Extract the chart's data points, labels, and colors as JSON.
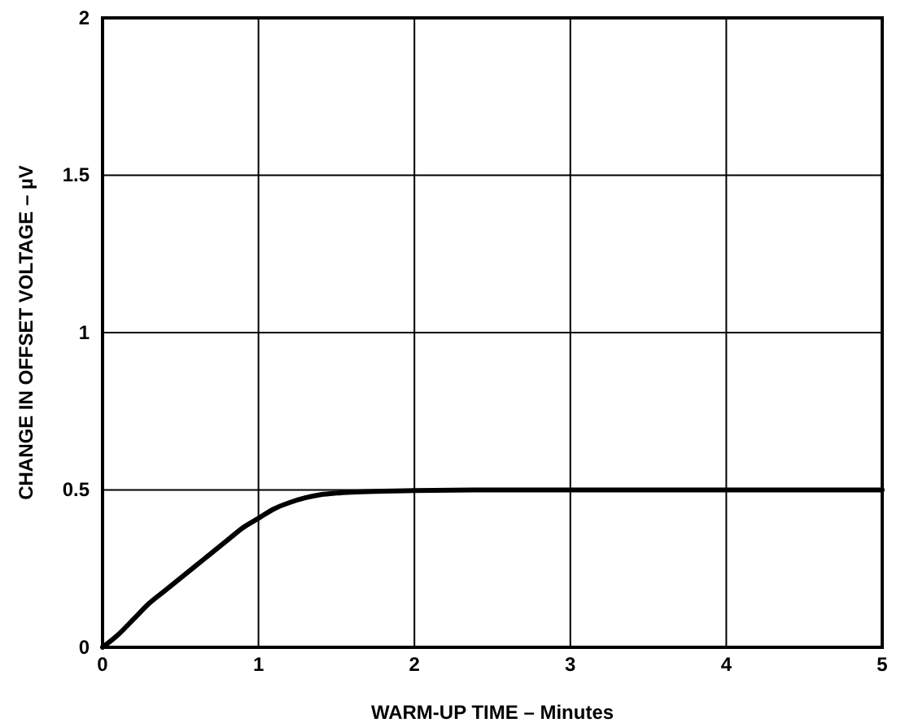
{
  "chart_data": {
    "type": "line",
    "xlabel": "WARM-UP TIME – Minutes",
    "ylabel": "CHANGE IN OFFSET VOLTAGE – µV",
    "xlim": [
      0,
      5
    ],
    "ylim": [
      0,
      2
    ],
    "xticks": [
      0,
      1,
      2,
      3,
      4,
      5
    ],
    "yticks": [
      0,
      0.5,
      1,
      1.5,
      2
    ],
    "grid": true,
    "series": [
      {
        "color": "#000000",
        "x": [
          0,
          0.1,
          0.2,
          0.3,
          0.4,
          0.5,
          0.6,
          0.7,
          0.8,
          0.9,
          1,
          1.1,
          1.2,
          1.3,
          1.4,
          1.5,
          1.6,
          1.8,
          2,
          2.5,
          3,
          4,
          5
        ],
        "values": [
          0,
          0.04,
          0.09,
          0.14,
          0.18,
          0.22,
          0.26,
          0.3,
          0.34,
          0.38,
          0.41,
          0.44,
          0.46,
          0.475,
          0.485,
          0.49,
          0.493,
          0.496,
          0.498,
          0.5,
          0.5,
          0.5,
          0.5
        ]
      }
    ]
  }
}
